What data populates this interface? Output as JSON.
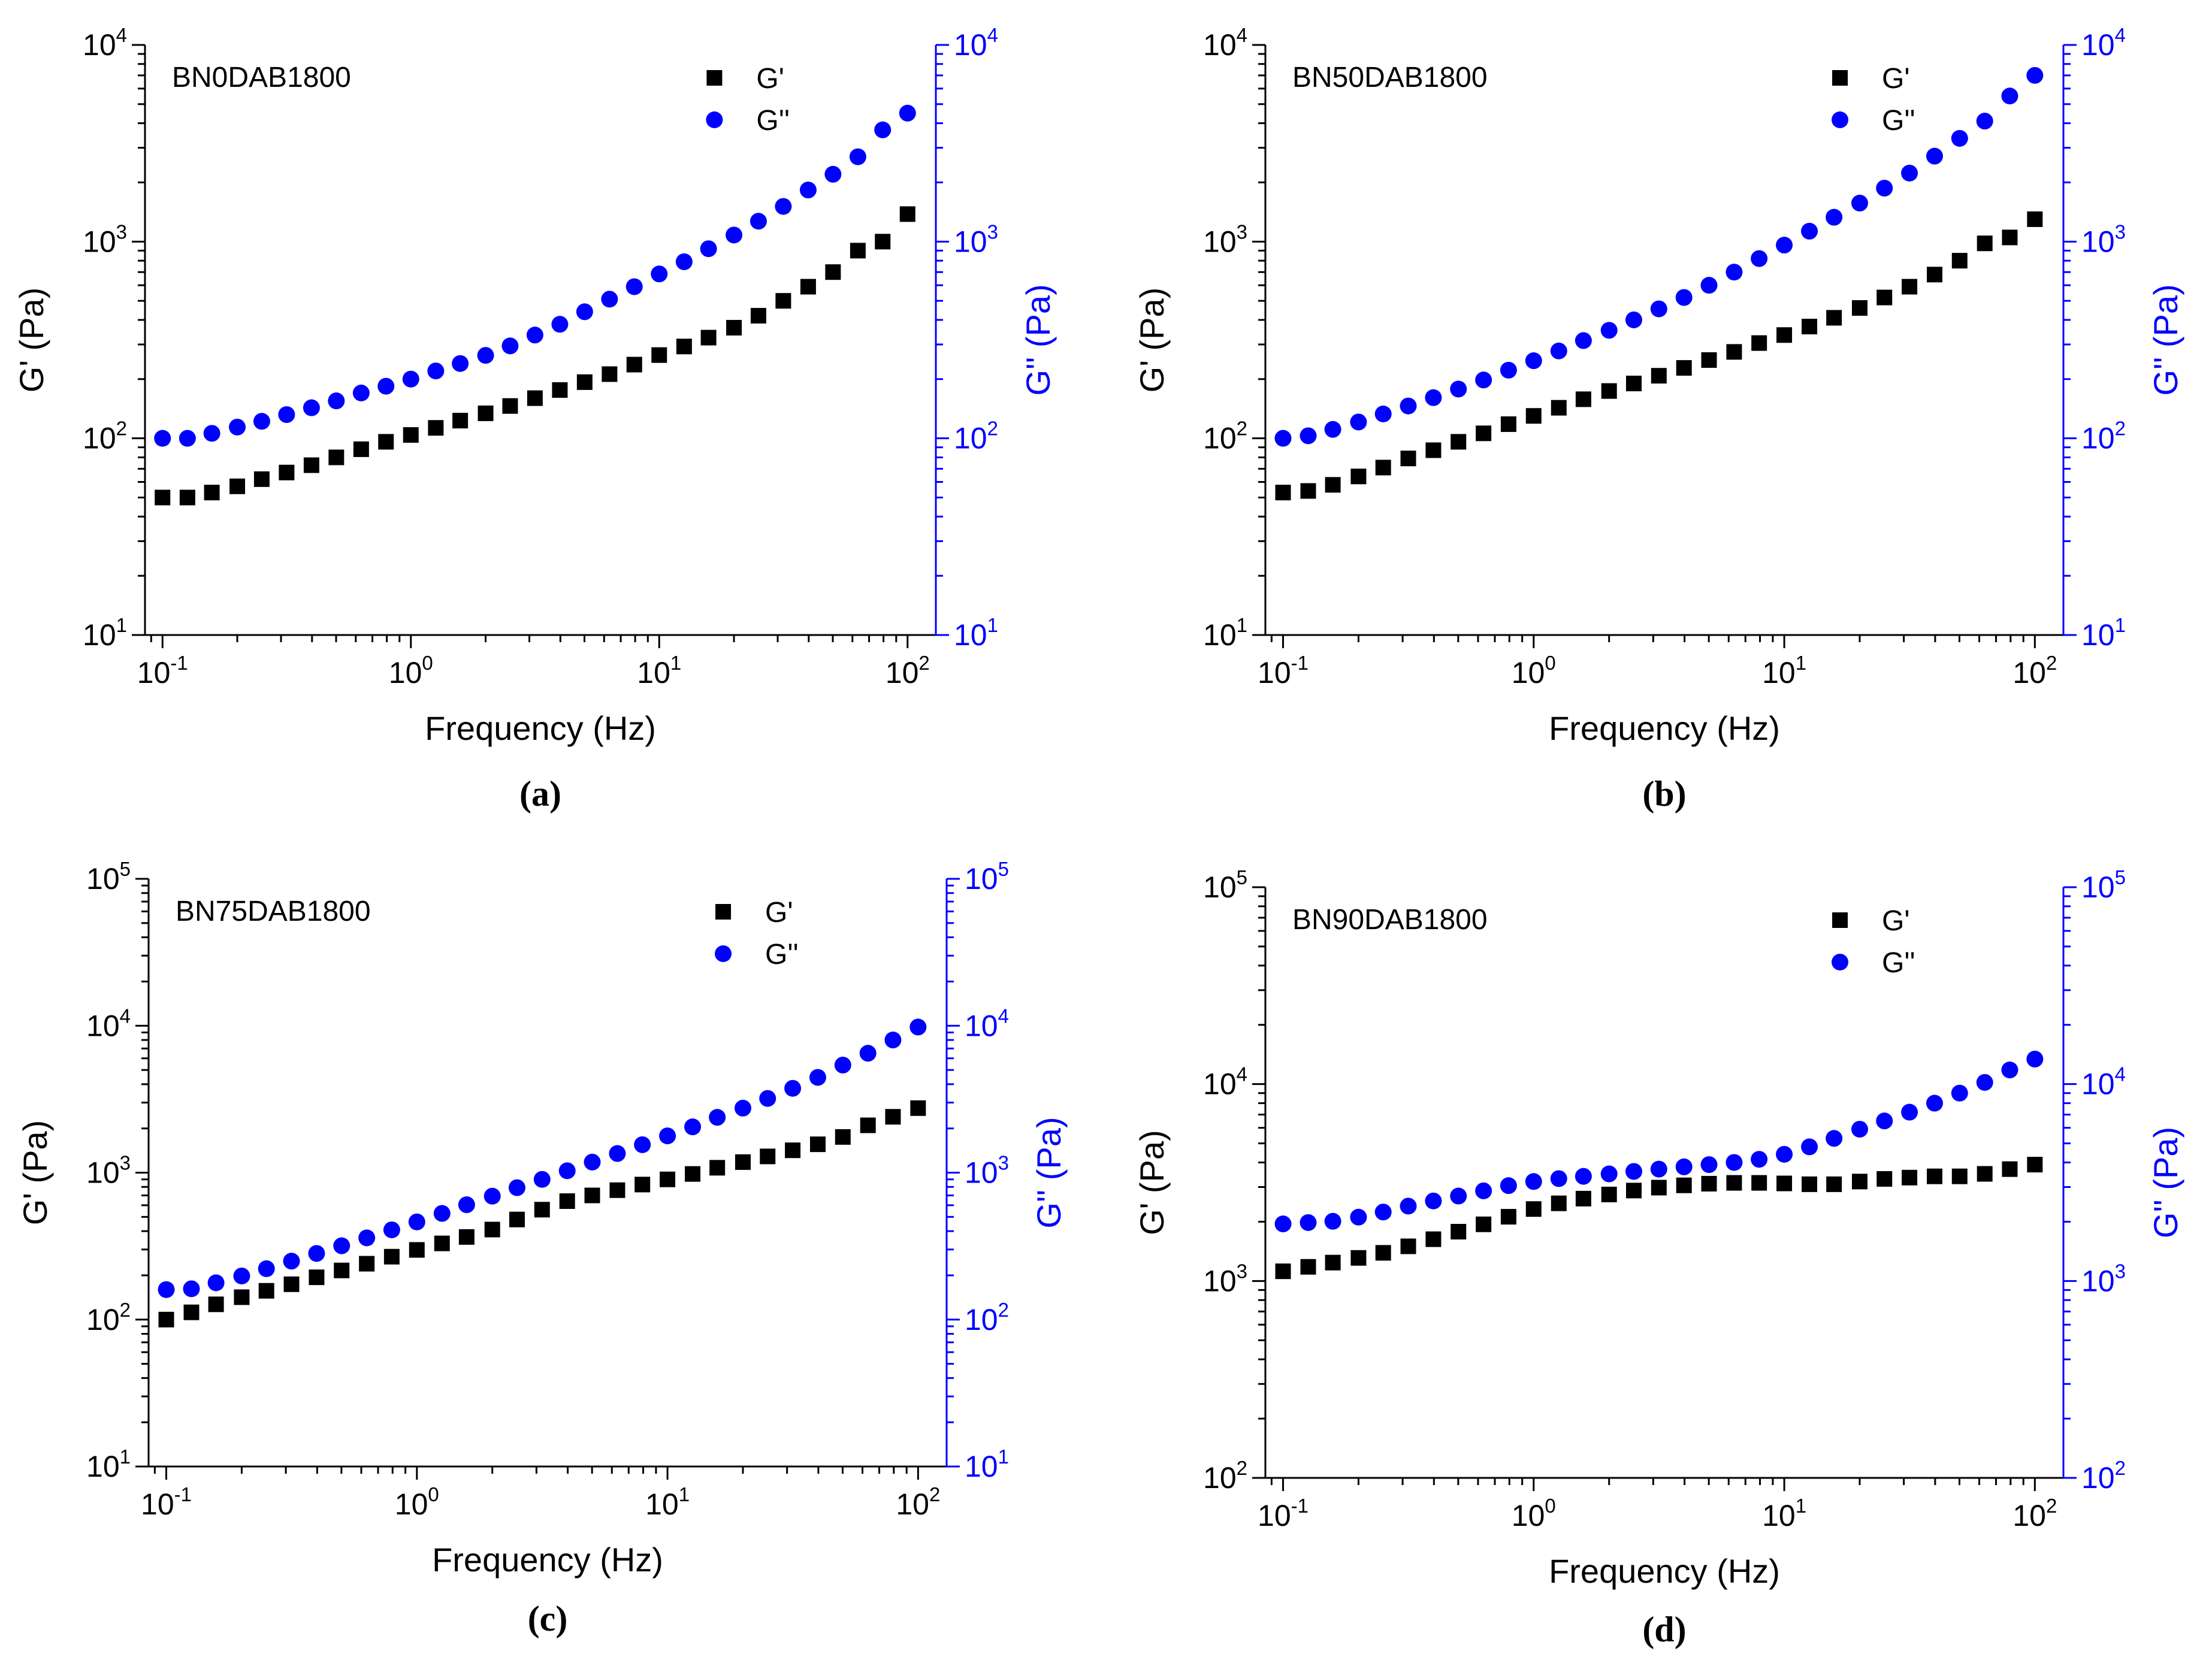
{
  "figure": {
    "colors": {
      "g_prime": "#000000",
      "g_double_prime": "#0000ff",
      "right_axis": "#0000ff",
      "left_axis": "#000000"
    }
  },
  "chart_data": [
    {
      "id": "a",
      "panel_label": "(a)",
      "sample": "BN0DAB1800",
      "type": "scatter",
      "xscale": "log",
      "yscale": "log",
      "xlabel": "Frequency (Hz)",
      "ylabel_left": "G' (Pa)",
      "ylabel_right": "G'' (Pa)",
      "xlim": [
        0.085,
        130
      ],
      "ylim": [
        10,
        10000
      ],
      "x_ticks": [
        {
          "base": "10",
          "exp": "-1",
          "value": 0.1
        },
        {
          "base": "10",
          "exp": "0",
          "value": 1
        },
        {
          "base": "10",
          "exp": "1",
          "value": 10
        },
        {
          "base": "10",
          "exp": "2",
          "value": 100
        }
      ],
      "y_ticks_left": [
        {
          "base": "10",
          "exp": "1",
          "value": 10
        },
        {
          "base": "10",
          "exp": "2",
          "value": 100
        },
        {
          "base": "10",
          "exp": "3",
          "value": 1000
        },
        {
          "base": "10",
          "exp": "4",
          "value": 10000
        }
      ],
      "y_ticks_right": [
        {
          "base": "10",
          "exp": "1",
          "value": 10
        },
        {
          "base": "10",
          "exp": "2",
          "value": 100
        },
        {
          "base": "10",
          "exp": "3",
          "value": 1000
        },
        {
          "base": "10",
          "exp": "4",
          "value": 10000
        }
      ],
      "legend": {
        "position": "top-right",
        "entries": [
          "G'",
          "G''"
        ]
      },
      "x": [
        0.1,
        0.126,
        0.158,
        0.2,
        0.251,
        0.316,
        0.398,
        0.501,
        0.631,
        0.794,
        1,
        1.26,
        1.58,
        2,
        2.51,
        3.16,
        3.98,
        5.01,
        6.31,
        7.94,
        10,
        12.6,
        15.8,
        20,
        25.1,
        31.6,
        39.8,
        50.1,
        63.1,
        79.4,
        100
      ],
      "series": [
        {
          "name": "G'",
          "marker": "square",
          "values": [
            50,
            50,
            53,
            57,
            62,
            67,
            73,
            80,
            88,
            96,
            104,
            113,
            123,
            134,
            146,
            160,
            176,
            193,
            212,
            237,
            265,
            293,
            325,
            365,
            420,
            500,
            590,
            700,
            900,
            1000,
            1380
          ]
        },
        {
          "name": "G''",
          "marker": "circle",
          "values": [
            100,
            100,
            106,
            114,
            122,
            132,
            143,
            155,
            170,
            184,
            200,
            220,
            240,
            264,
            295,
            335,
            380,
            440,
            510,
            590,
            685,
            790,
            920,
            1080,
            1270,
            1510,
            1830,
            2200,
            2700,
            3700,
            4500
          ]
        }
      ]
    },
    {
      "id": "b",
      "panel_label": "(b)",
      "sample": "BN50DAB1800",
      "type": "scatter",
      "xscale": "log",
      "yscale": "log",
      "xlabel": "Frequency (Hz)",
      "ylabel_left": "G' (Pa)",
      "ylabel_right": "G'' (Pa)",
      "xlim": [
        0.085,
        130
      ],
      "ylim": [
        10,
        10000
      ],
      "x_ticks": [
        {
          "base": "10",
          "exp": "-1",
          "value": 0.1
        },
        {
          "base": "10",
          "exp": "0",
          "value": 1
        },
        {
          "base": "10",
          "exp": "1",
          "value": 10
        },
        {
          "base": "10",
          "exp": "2",
          "value": 100
        }
      ],
      "y_ticks_left": [
        {
          "base": "10",
          "exp": "1",
          "value": 10
        },
        {
          "base": "10",
          "exp": "2",
          "value": 100
        },
        {
          "base": "10",
          "exp": "3",
          "value": 1000
        },
        {
          "base": "10",
          "exp": "4",
          "value": 10000
        }
      ],
      "y_ticks_right": [
        {
          "base": "10",
          "exp": "1",
          "value": 10
        },
        {
          "base": "10",
          "exp": "2",
          "value": 100
        },
        {
          "base": "10",
          "exp": "3",
          "value": 1000
        },
        {
          "base": "10",
          "exp": "4",
          "value": 10000
        }
      ],
      "legend": {
        "position": "top-right",
        "entries": [
          "G'",
          "G''"
        ]
      },
      "x": [
        0.1,
        0.126,
        0.158,
        0.2,
        0.251,
        0.316,
        0.398,
        0.501,
        0.631,
        0.794,
        1,
        1.26,
        1.58,
        2,
        2.51,
        3.16,
        3.98,
        5.01,
        6.31,
        7.94,
        10,
        12.6,
        15.8,
        20,
        25.1,
        31.6,
        39.8,
        50.1,
        63.1,
        79.4,
        100
      ],
      "series": [
        {
          "name": "G'",
          "marker": "square",
          "values": [
            53,
            54,
            58,
            64,
            71,
            79,
            87,
            96,
            106,
            118,
            130,
            143,
            158,
            174,
            190,
            208,
            228,
            250,
            275,
            305,
            335,
            370,
            410,
            460,
            520,
            590,
            680,
            800,
            980,
            1050,
            1300
          ]
        },
        {
          "name": "G''",
          "marker": "circle",
          "values": [
            100,
            103,
            111,
            121,
            133,
            146,
            161,
            178,
            198,
            222,
            248,
            278,
            314,
            354,
            400,
            455,
            520,
            600,
            700,
            820,
            960,
            1130,
            1330,
            1570,
            1870,
            2230,
            2720,
            3350,
            4100,
            5500,
            7000
          ]
        }
      ]
    },
    {
      "id": "c",
      "panel_label": "(c)",
      "sample": "BN75DAB1800",
      "type": "scatter",
      "xscale": "log",
      "yscale": "log",
      "xlabel": "Frequency (Hz)",
      "ylabel_left": "G' (Pa)",
      "ylabel_right": "G'' (Pa)",
      "xlim": [
        0.085,
        130
      ],
      "ylim": [
        10,
        100000
      ],
      "x_ticks": [
        {
          "base": "10",
          "exp": "-1",
          "value": 0.1
        },
        {
          "base": "10",
          "exp": "0",
          "value": 1
        },
        {
          "base": "10",
          "exp": "1",
          "value": 10
        },
        {
          "base": "10",
          "exp": "2",
          "value": 100
        }
      ],
      "y_ticks_left": [
        {
          "base": "10",
          "exp": "1",
          "value": 10
        },
        {
          "base": "10",
          "exp": "2",
          "value": 100
        },
        {
          "base": "10",
          "exp": "3",
          "value": 1000
        },
        {
          "base": "10",
          "exp": "4",
          "value": 10000
        },
        {
          "base": "10",
          "exp": "5",
          "value": 100000
        }
      ],
      "y_ticks_right": [
        {
          "base": "10",
          "exp": "1",
          "value": 10
        },
        {
          "base": "10",
          "exp": "2",
          "value": 100
        },
        {
          "base": "10",
          "exp": "3",
          "value": 1000
        },
        {
          "base": "10",
          "exp": "4",
          "value": 10000
        },
        {
          "base": "10",
          "exp": "5",
          "value": 100000
        }
      ],
      "legend": {
        "position": "top-right",
        "entries": [
          "G'",
          "G''"
        ]
      },
      "x": [
        0.1,
        0.126,
        0.158,
        0.2,
        0.251,
        0.316,
        0.398,
        0.501,
        0.631,
        0.794,
        1,
        1.26,
        1.58,
        2,
        2.51,
        3.16,
        3.98,
        5.01,
        6.31,
        7.94,
        10,
        12.6,
        15.8,
        20,
        25.1,
        31.6,
        39.8,
        50.1,
        63.1,
        79.4,
        100
      ],
      "series": [
        {
          "name": "G'",
          "marker": "square",
          "values": [
            100,
            112,
            127,
            142,
            157,
            174,
            194,
            216,
            240,
            268,
            298,
            330,
            365,
            410,
            480,
            560,
            640,
            700,
            760,
            830,
            900,
            980,
            1080,
            1180,
            1290,
            1420,
            1560,
            1750,
            2100,
            2400,
            2750
          ]
        },
        {
          "name": "G''",
          "marker": "circle",
          "values": [
            160,
            162,
            178,
            198,
            222,
            250,
            282,
            318,
            360,
            408,
            462,
            528,
            605,
            692,
            790,
            900,
            1030,
            1180,
            1350,
            1550,
            1780,
            2050,
            2380,
            2750,
            3200,
            3750,
            4450,
            5400,
            6500,
            8000,
            9800
          ]
        }
      ]
    },
    {
      "id": "d",
      "panel_label": "(d)",
      "sample": "BN90DAB1800",
      "type": "scatter",
      "xscale": "log",
      "yscale": "log",
      "xlabel": "Frequency (Hz)",
      "ylabel_left": "G' (Pa)",
      "ylabel_right": "G'' (Pa)",
      "xlim": [
        0.085,
        130
      ],
      "ylim": [
        100,
        100000
      ],
      "x_ticks": [
        {
          "base": "10",
          "exp": "-1",
          "value": 0.1
        },
        {
          "base": "10",
          "exp": "0",
          "value": 1
        },
        {
          "base": "10",
          "exp": "1",
          "value": 10
        },
        {
          "base": "10",
          "exp": "2",
          "value": 100
        }
      ],
      "y_ticks_left": [
        {
          "base": "10",
          "exp": "2",
          "value": 100
        },
        {
          "base": "10",
          "exp": "3",
          "value": 1000
        },
        {
          "base": "10",
          "exp": "4",
          "value": 10000
        },
        {
          "base": "10",
          "exp": "5",
          "value": 100000
        }
      ],
      "y_ticks_right": [
        {
          "base": "10",
          "exp": "2",
          "value": 100
        },
        {
          "base": "10",
          "exp": "3",
          "value": 1000
        },
        {
          "base": "10",
          "exp": "4",
          "value": 10000
        },
        {
          "base": "10",
          "exp": "5",
          "value": 100000
        }
      ],
      "legend": {
        "position": "top-right",
        "entries": [
          "G'",
          "G''"
        ]
      },
      "x": [
        0.1,
        0.126,
        0.158,
        0.2,
        0.251,
        0.316,
        0.398,
        0.501,
        0.631,
        0.794,
        1,
        1.26,
        1.58,
        2,
        2.51,
        3.16,
        3.98,
        5.01,
        6.31,
        7.94,
        10,
        12.6,
        15.8,
        20,
        25.1,
        31.6,
        39.8,
        50.1,
        63.1,
        79.4,
        100
      ],
      "series": [
        {
          "name": "G'",
          "marker": "square",
          "values": [
            1120,
            1180,
            1240,
            1310,
            1390,
            1500,
            1630,
            1780,
            1940,
            2120,
            2320,
            2480,
            2620,
            2750,
            2880,
            2980,
            3060,
            3120,
            3150,
            3150,
            3130,
            3100,
            3100,
            3200,
            3300,
            3350,
            3400,
            3400,
            3500,
            3700,
            3900
          ]
        },
        {
          "name": "G''",
          "marker": "circle",
          "values": [
            1950,
            1980,
            2010,
            2110,
            2240,
            2400,
            2550,
            2700,
            2870,
            3050,
            3200,
            3310,
            3400,
            3500,
            3600,
            3700,
            3800,
            3900,
            4000,
            4150,
            4400,
            4800,
            5300,
            5900,
            6500,
            7200,
            8000,
            9000,
            10200,
            11800,
            13400
          ]
        }
      ]
    }
  ]
}
